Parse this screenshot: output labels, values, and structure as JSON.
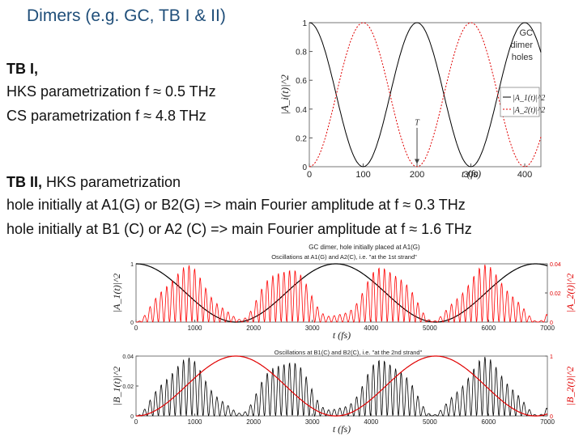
{
  "slide": {
    "title": "Dimers (e.g. GC, TB I & II)",
    "tb1_heading": "TB I,",
    "tb1_hks": "HKS parametrization  f ≈ 0.5 THz",
    "tb1_cs": "CS   parametrization  f ≈ 4.8 THz",
    "tb2_heading": "TB II,",
    "tb2_heading_rest": " HKS parametrization",
    "tb2_line1": "hole initially at A1(G) or B2(G) => main Fourier amplitude at f ≈ 0.3 THz",
    "tb2_line2": "hole initially at B1 (C) or A2 (C) => main Fourier amplitude at f ≈ 1.6 THz"
  },
  "chart_data": [
    {
      "type": "line",
      "annotation": "GC dimer holes",
      "marker_label": "T",
      "ylabel": "|A_i(t)|^2",
      "xlabel": "t (fs)",
      "xlim": [
        0,
        430
      ],
      "ylim": [
        0,
        1
      ],
      "xticks": [
        "0",
        "100",
        "200",
        "300",
        "400"
      ],
      "yticks": [
        "0",
        "0.2",
        "0.4",
        "0.6",
        "0.8",
        "1"
      ],
      "period_fs": 200,
      "series": [
        {
          "name": "|A_1(t)|^2",
          "color": "#000000",
          "style": "solid",
          "formula": "cos^2(pi t / 200)"
        },
        {
          "name": "|A_2(t)|^2",
          "color": "#e00000",
          "style": "dotted",
          "formula": "sin^2(pi t / 200)"
        }
      ]
    },
    {
      "type": "line",
      "title": "GC dimer, hole initially placed at A1(G)",
      "subtitle": "Oscillations at A1(G) and A2(C), i.e. \"at the 1st strand\"",
      "xlabel": "t (fs)",
      "ylabel_left": "|A_1(t)|^2",
      "ylabel_right": "|A_2(t)|^2",
      "xlim": [
        0,
        7000
      ],
      "ylim_left": [
        0,
        1
      ],
      "ylim_right": [
        0,
        0.04
      ],
      "xticks": [
        "0",
        "1000",
        "2000",
        "3000",
        "4000",
        "5000",
        "6000",
        "7000"
      ],
      "yticks_left": [
        "0",
        "1"
      ],
      "yticks_right": [
        "0",
        "0.02",
        "0.04"
      ],
      "series": [
        {
          "name": "|A_1(t)|^2",
          "color": "#000000",
          "axis": "left",
          "period_fs": 3400
        },
        {
          "name": "|A_2(t)|^2",
          "color": "#ff0000",
          "axis": "right",
          "fast_period_fs": 625,
          "beat_period_fs": 1700
        }
      ]
    },
    {
      "type": "line",
      "subtitle": "Oscillations at B1(C) and B2(C), i.e. \"at the 2nd strand\"",
      "xlabel": "t (fs)",
      "ylabel_left": "|B_1(t)|^2",
      "ylabel_right": "|B_2(t)|^2",
      "xlim": [
        0,
        7000
      ],
      "ylim_left": [
        0,
        0.04
      ],
      "ylim_right": [
        0,
        1
      ],
      "xticks": [
        "0",
        "1000",
        "2000",
        "3000",
        "4000",
        "5000",
        "6000",
        "7000"
      ],
      "yticks_left": [
        "0",
        "0.02",
        "0.04"
      ],
      "yticks_right": [
        "0",
        "1"
      ],
      "series": [
        {
          "name": "|B_1(t)|^2",
          "color": "#000000",
          "axis": "left",
          "fast_period_fs": 625,
          "beat_period_fs": 1700
        },
        {
          "name": "|B_2(t)|^2",
          "color": "#e00000",
          "axis": "right",
          "period_fs": 3400
        }
      ]
    }
  ]
}
